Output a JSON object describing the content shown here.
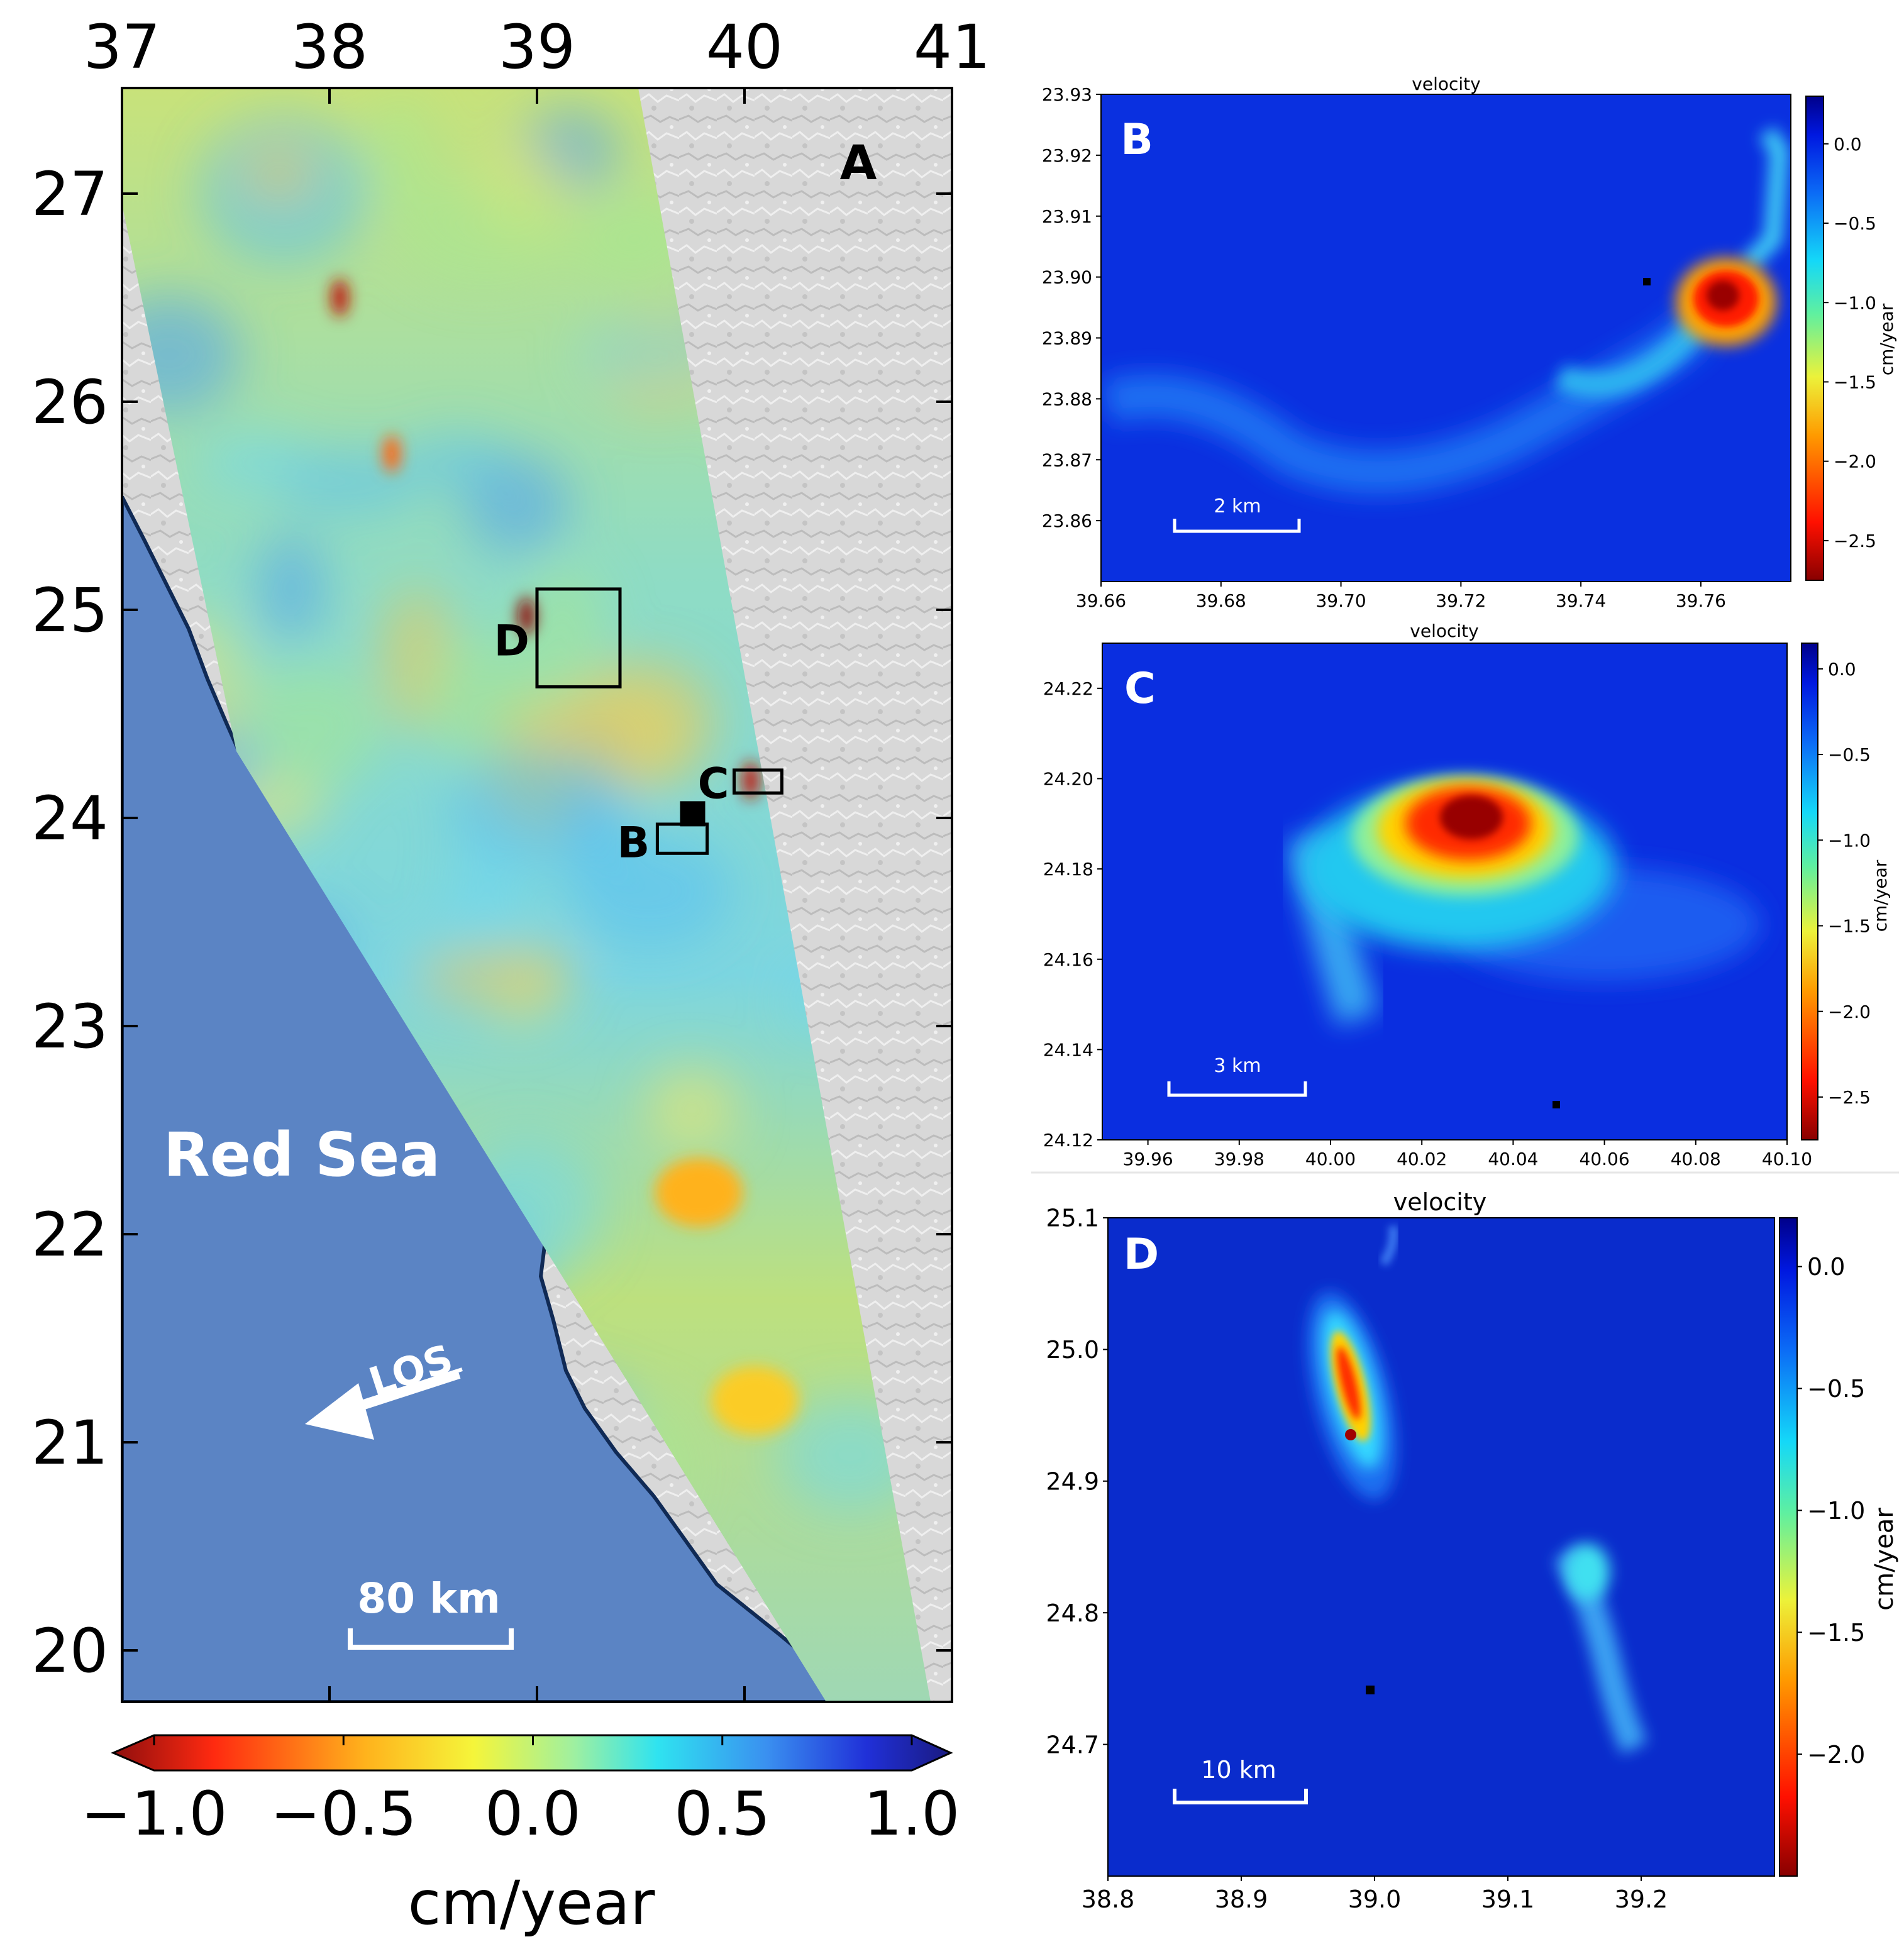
{
  "chart_data": [
    {
      "panel": "A",
      "type": "heatmap",
      "panel_label": "A",
      "x_ticks": [
        "37",
        "38",
        "39",
        "40",
        "41"
      ],
      "y_ticks": [
        "27",
        "26",
        "25",
        "24",
        "23",
        "22",
        "21",
        "20"
      ],
      "xlim": [
        37,
        41
      ],
      "ylim": [
        19.7,
        27.5
      ],
      "sea_label": "Red Sea",
      "los_label": "LOS",
      "scale_label": "80 km",
      "colorbar": {
        "ticks": [
          "−1.0",
          "−0.5",
          "0.0",
          "0.5",
          "1.0"
        ],
        "label": "cm/year",
        "range": [
          -1.0,
          1.0
        ],
        "orientation": "horizontal",
        "colormap": "jet_r"
      },
      "boxes": [
        {
          "label": "D",
          "lon": [
            39.0,
            39.4
          ],
          "lat": [
            24.63,
            25.1
          ]
        },
        {
          "label": "C",
          "lon": [
            39.95,
            40.18
          ],
          "lat": [
            24.12,
            24.23
          ]
        },
        {
          "label": "B",
          "lon": [
            39.58,
            39.82
          ],
          "lat": [
            23.83,
            23.97
          ]
        }
      ],
      "reference_point": {
        "lon": 39.75,
        "lat": 24.02
      },
      "hotspots": [
        {
          "lon": 38.95,
          "lat": 24.97,
          "value": -1.0
        },
        {
          "lon": 40.03,
          "lat": 24.18,
          "value": -0.9
        },
        {
          "lon": 39.78,
          "lat": 22.2,
          "value": -0.4
        },
        {
          "lon": 40.05,
          "lat": 21.2,
          "value": -0.3
        },
        {
          "lon": 38.05,
          "lat": 26.5,
          "value": -0.9
        },
        {
          "lon": 38.3,
          "lat": 25.75,
          "value": -0.6
        }
      ]
    },
    {
      "panel": "B",
      "type": "heatmap",
      "title": "velocity",
      "panel_label": "B",
      "x_ticks": [
        "39.66",
        "39.68",
        "39.70",
        "39.72",
        "39.74",
        "39.76"
      ],
      "y_ticks": [
        "23.93",
        "23.92",
        "23.91",
        "23.90",
        "23.89",
        "23.88",
        "23.87",
        "23.86"
      ],
      "xlim": [
        39.66,
        39.775
      ],
      "ylim": [
        23.85,
        23.93
      ],
      "scale_label": "2 km",
      "colorbar": {
        "ticks": [
          "0.0",
          "−0.5",
          "−1.0",
          "−1.5",
          "−2.0",
          "−2.5"
        ],
        "label": "cm/year",
        "range": [
          -2.75,
          0.3
        ]
      },
      "hotspot": {
        "lon": 39.763,
        "lat": 23.897,
        "value": -2.6
      },
      "reference_point": {
        "lon": 39.75,
        "lat": 23.9
      }
    },
    {
      "panel": "C",
      "type": "heatmap",
      "title": "velocity",
      "panel_label": "C",
      "x_ticks": [
        "39.96",
        "39.98",
        "40.00",
        "40.02",
        "40.04",
        "40.06",
        "40.08",
        "40.10"
      ],
      "y_ticks": [
        "24.22",
        "24.20",
        "24.18",
        "24.16",
        "24.14",
        "24.12"
      ],
      "xlim": [
        39.95,
        40.1
      ],
      "ylim": [
        24.12,
        24.23
      ],
      "scale_label": "3 km",
      "colorbar": {
        "ticks": [
          "0.0",
          "−0.5",
          "−1.0",
          "−1.5",
          "−2.0",
          "−2.5"
        ],
        "label": "cm/year",
        "range": [
          -2.75,
          0.15
        ]
      },
      "hotspot": {
        "lon": 40.027,
        "lat": 24.19,
        "value": -2.6
      },
      "reference_point": {
        "lon": 40.05,
        "lat": 24.128
      }
    },
    {
      "panel": "D",
      "type": "heatmap",
      "title": "velocity",
      "panel_label": "D",
      "x_ticks": [
        "38.8",
        "38.9",
        "39.0",
        "39.1",
        "39.2"
      ],
      "y_ticks": [
        "25.1",
        "25.0",
        "24.9",
        "24.8",
        "24.7"
      ],
      "xlim": [
        38.8,
        39.3
      ],
      "ylim": [
        24.6,
        25.1
      ],
      "scale_label": "10 km",
      "colorbar": {
        "ticks": [
          "0.0",
          "−0.5",
          "−1.0",
          "−1.5",
          "−2.0"
        ],
        "label": "cm/year",
        "range": [
          -2.5,
          0.2
        ]
      },
      "hotspot": {
        "lon": 38.98,
        "lat": 24.97,
        "value": -2.3
      },
      "reference_point": {
        "lon": 39.0,
        "lat": 24.74
      }
    }
  ]
}
